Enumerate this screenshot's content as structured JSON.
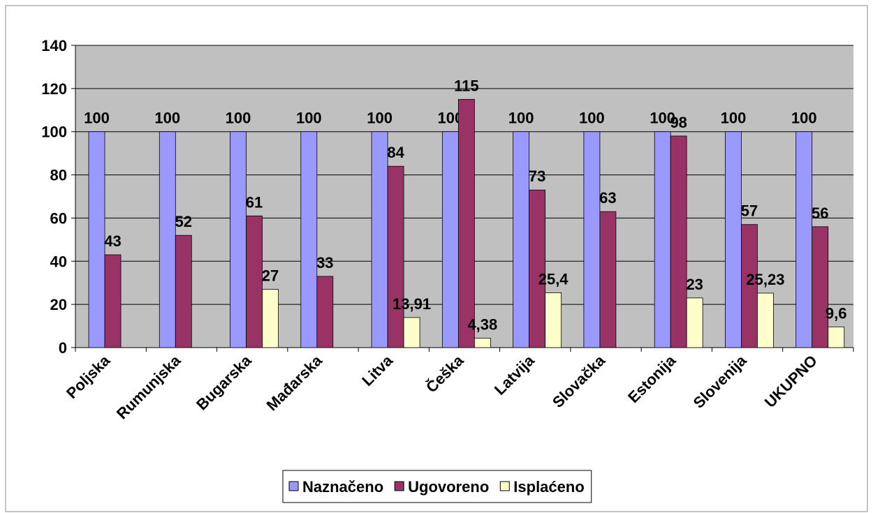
{
  "chart_data": {
    "type": "bar",
    "categories": [
      "Poljska",
      "Rumunjska",
      "Bugarska",
      "Mađarska",
      "Litva",
      "Češka",
      "Latvija",
      "Slovačka",
      "Estonija",
      "Slovenija",
      "UKUPNO"
    ],
    "series": [
      {
        "name": "Naznačeno",
        "color": "#9999ff",
        "values": [
          100,
          100,
          100,
          100,
          100,
          100,
          100,
          100,
          100,
          100,
          100
        ]
      },
      {
        "name": "Ugovoreno",
        "color": "#993366",
        "values": [
          43,
          52,
          61,
          33,
          84,
          115,
          73,
          63,
          98,
          57,
          56
        ]
      },
      {
        "name": "Isplaćeno",
        "color": "#ffffcc",
        "values": [
          null,
          null,
          27,
          null,
          13.91,
          4.38,
          25.4,
          null,
          23,
          25.23,
          9.6
        ],
        "value_labels": [
          null,
          null,
          "27",
          null,
          "13,91",
          "4,38",
          "25,4",
          null,
          "23",
          "25,23",
          "9,6"
        ]
      }
    ],
    "ylim": [
      0,
      140
    ],
    "yticks": [
      0,
      20,
      40,
      60,
      80,
      100,
      120,
      140
    ],
    "grid": true,
    "legend": "bottom"
  }
}
